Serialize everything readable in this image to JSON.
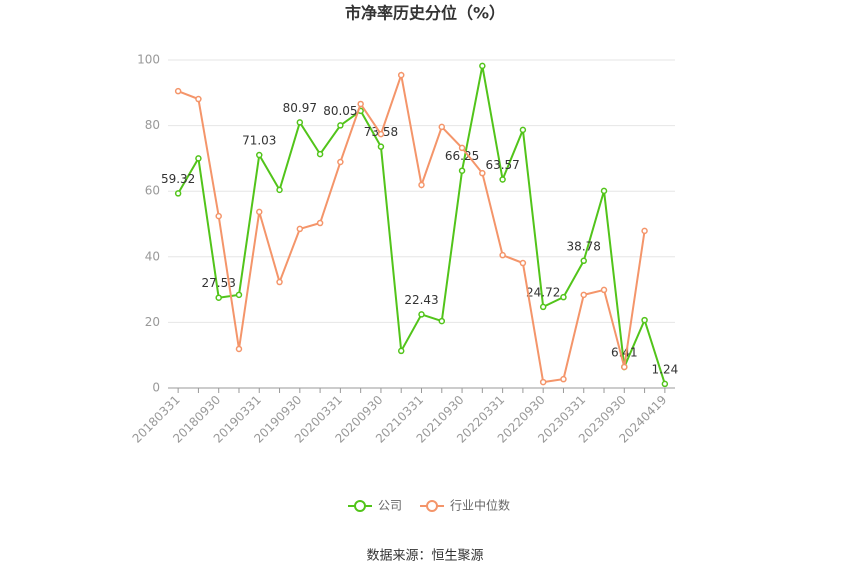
{
  "chart_data": {
    "type": "line",
    "title": "市净率历史分位（%）",
    "categories": [
      "20180331",
      null,
      "20180930",
      null,
      "20190331",
      null,
      "20190930",
      null,
      "20200331",
      null,
      "20200930",
      null,
      "20210331",
      null,
      "20210930",
      null,
      "20220331",
      null,
      "20220930",
      null,
      "20230331",
      null,
      "20230930",
      null,
      "20240419"
    ],
    "series": [
      {
        "name": "公司",
        "color": "#52c41a",
        "values": [
          59.32,
          70,
          27.53,
          28.4,
          71.03,
          60.4,
          80.97,
          71.3,
          80.05,
          84.5,
          73.58,
          11.3,
          22.43,
          20.4,
          66.25,
          98.2,
          63.57,
          78.7,
          24.72,
          27.7,
          38.78,
          60.1,
          6.41,
          20.7,
          1.24
        ],
        "value_labels": [
          "59.32",
          null,
          "27.53",
          null,
          "71.03",
          null,
          "80.97",
          null,
          "80.05",
          null,
          "73.58",
          null,
          "22.43",
          null,
          "66.25",
          null,
          "63.57",
          null,
          "24.72",
          null,
          "38.78",
          null,
          "6.41",
          null,
          "1.24"
        ]
      },
      {
        "name": "行业中位数",
        "color": "#f4956a",
        "values": [
          90.5,
          88.1,
          52.4,
          11.9,
          53.7,
          32.3,
          48.5,
          50.3,
          68.9,
          86.6,
          77.4,
          95.4,
          61.9,
          79.6,
          73.2,
          65.5,
          40.5,
          38.1,
          1.8,
          2.7,
          28.4,
          29.9,
          6.4,
          47.9,
          null
        ]
      }
    ],
    "ylim": [
      0,
      100
    ],
    "yticks": [
      0,
      20,
      40,
      60,
      80,
      100
    ],
    "grid": true,
    "source": "数据来源：恒生聚源"
  }
}
